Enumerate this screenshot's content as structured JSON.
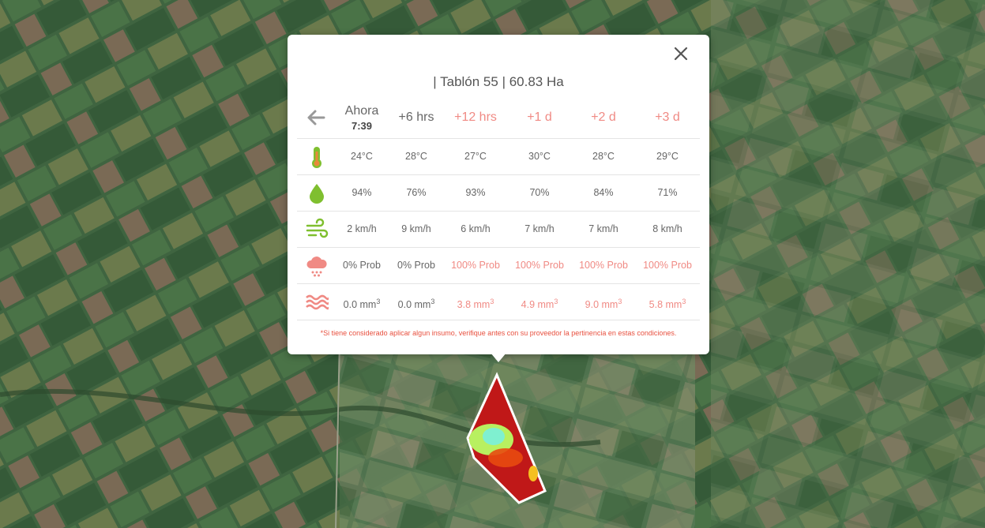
{
  "popup": {
    "title": "| Tablón 55 | 60.83 Ha",
    "note": "*Si tiene considerado aplicar algun insumo, verifique antes con su proveedor la pertinencia en estas condiciones.",
    "columns": [
      {
        "label": "Ahora",
        "sub": "7:39",
        "future": false
      },
      {
        "label": "+6 hrs",
        "sub": "",
        "future": false
      },
      {
        "label": "+12 hrs",
        "sub": "",
        "future": true
      },
      {
        "label": "+1 d",
        "sub": "",
        "future": true
      },
      {
        "label": "+2 d",
        "sub": "",
        "future": true
      },
      {
        "label": "+3 d",
        "sub": "",
        "future": true
      }
    ],
    "rows": [
      {
        "icon": "thermometer-icon",
        "values": [
          "24°C",
          "28°C",
          "27°C",
          "30°C",
          "28°C",
          "29°C"
        ]
      },
      {
        "icon": "humidity-drop-icon",
        "values": [
          "94%",
          "76%",
          "93%",
          "70%",
          "84%",
          "71%"
        ]
      },
      {
        "icon": "wind-icon",
        "values": [
          "2 km/h",
          "9 km/h",
          "6 km/h",
          "7 km/h",
          "7 km/h",
          "8 km/h"
        ]
      },
      {
        "icon": "rain-cloud-icon",
        "values": [
          "0% Prob",
          "0% Prob",
          "100% Prob",
          "100% Prob",
          "100% Prob",
          "100% Prob"
        ]
      },
      {
        "icon": "precipitation-waves-icon",
        "values": [
          "0.0 mm",
          "0.0 mm",
          "3.8 mm",
          "4.9 mm",
          "9.0 mm",
          "5.8 mm"
        ],
        "unit_sup": "3"
      }
    ],
    "colors": {
      "future": "#f08a84",
      "accent_red": "#e8503f",
      "icon_orange": "#e8893a",
      "icon_green": "#7fbf2f"
    }
  }
}
